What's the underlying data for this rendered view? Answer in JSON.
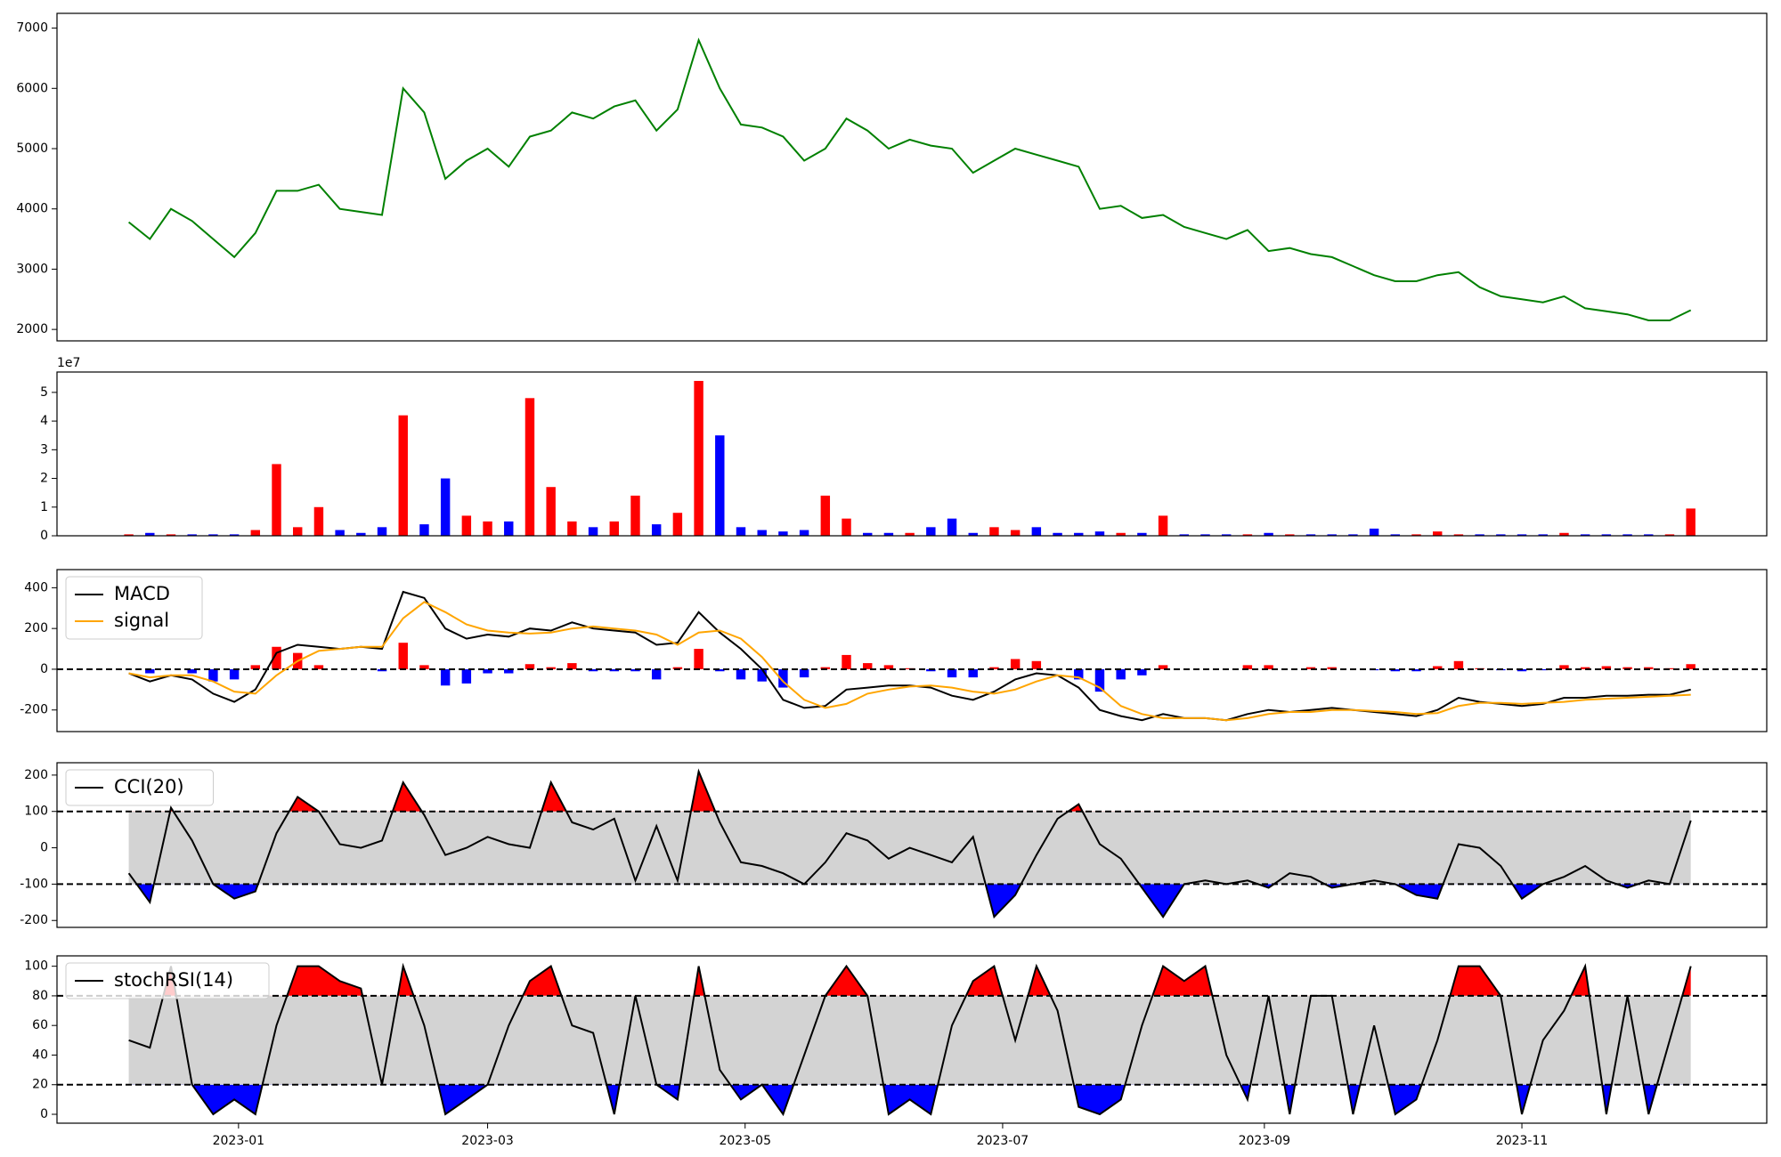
{
  "chart_data": {
    "x": [
      "2022-12-06",
      "2022-12-11",
      "2022-12-16",
      "2022-12-21",
      "2022-12-26",
      "2022-12-31",
      "2023-01-05",
      "2023-01-10",
      "2023-01-15",
      "2023-01-20",
      "2023-01-25",
      "2023-01-30",
      "2023-02-04",
      "2023-02-09",
      "2023-02-14",
      "2023-02-19",
      "2023-02-24",
      "2023-03-01",
      "2023-03-06",
      "2023-03-11",
      "2023-03-16",
      "2023-03-21",
      "2023-03-26",
      "2023-03-31",
      "2023-04-05",
      "2023-04-10",
      "2023-04-15",
      "2023-04-20",
      "2023-04-25",
      "2023-04-30",
      "2023-05-05",
      "2023-05-10",
      "2023-05-15",
      "2023-05-20",
      "2023-05-25",
      "2023-05-30",
      "2023-06-04",
      "2023-06-09",
      "2023-06-14",
      "2023-06-19",
      "2023-06-24",
      "2023-06-29",
      "2023-07-04",
      "2023-07-09",
      "2023-07-14",
      "2023-07-19",
      "2023-07-24",
      "2023-07-29",
      "2023-08-03",
      "2023-08-08",
      "2023-08-13",
      "2023-08-18",
      "2023-08-23",
      "2023-08-28",
      "2023-09-02",
      "2023-09-07",
      "2023-09-12",
      "2023-09-17",
      "2023-09-22",
      "2023-09-27",
      "2023-10-02",
      "2023-10-07",
      "2023-10-12",
      "2023-10-17",
      "2023-10-22",
      "2023-10-27",
      "2023-11-01",
      "2023-11-06",
      "2023-11-11",
      "2023-11-16",
      "2023-11-21",
      "2023-11-26",
      "2023-12-01",
      "2023-12-06",
      "2023-12-11"
    ],
    "xlim": [
      "2022-11-19",
      "2023-12-29"
    ],
    "xticks": [
      {
        "value": "2023-01-01",
        "label": "2023-01"
      },
      {
        "value": "2023-03-01",
        "label": "2023-03"
      },
      {
        "value": "2023-05-01",
        "label": "2023-05"
      },
      {
        "value": "2023-07-01",
        "label": "2023-07"
      },
      {
        "value": "2023-09-01",
        "label": "2023-09"
      },
      {
        "value": "2023-11-01",
        "label": "2023-11"
      }
    ],
    "panels": [
      {
        "type": "line",
        "color": "green",
        "ylim": [
          1810,
          7245
        ],
        "yticks": [
          2000,
          3000,
          4000,
          5000,
          6000,
          7000
        ],
        "values": [
          3780,
          3500,
          4000,
          3800,
          3500,
          3200,
          3600,
          4300,
          4300,
          4400,
          4000,
          3950,
          3900,
          6000,
          5600,
          4500,
          4800,
          5000,
          4700,
          5200,
          5300,
          5600,
          5500,
          5700,
          5800,
          5300,
          5650,
          6800,
          6000,
          5400,
          5350,
          5200,
          4800,
          5000,
          5500,
          5300,
          5000,
          5150,
          5050,
          5000,
          4600,
          4800,
          5000,
          4900,
          4800,
          4700,
          4000,
          4050,
          3850,
          3900,
          3700,
          3600,
          3500,
          3650,
          3300,
          3350,
          3250,
          3200,
          3050,
          2900,
          2800,
          2800,
          2900,
          2950,
          2700,
          2550,
          2500,
          2450,
          2550,
          2350,
          2300,
          2250,
          2150,
          2150,
          2320
        ]
      },
      {
        "type": "bar",
        "offset_label": "1e7",
        "up_color": "red",
        "down_color": "blue",
        "ylim": [
          0,
          5.71
        ],
        "yticks": [
          0,
          1,
          2,
          3,
          4,
          5
        ],
        "values": [
          0.05,
          0.1,
          0.05,
          0.05,
          0.05,
          0.05,
          0.2,
          2.5,
          0.3,
          1.0,
          0.2,
          0.1,
          0.3,
          4.2,
          0.4,
          2.0,
          0.7,
          0.5,
          0.5,
          4.8,
          1.7,
          0.5,
          0.3,
          0.5,
          1.4,
          0.4,
          0.8,
          5.4,
          3.5,
          0.3,
          0.2,
          0.15,
          0.2,
          1.4,
          0.6,
          0.1,
          0.1,
          0.1,
          0.3,
          0.6,
          0.1,
          0.3,
          0.2,
          0.3,
          0.1,
          0.1,
          0.15,
          0.1,
          0.1,
          0.7,
          0.05,
          0.05,
          0.05,
          0.05,
          0.1,
          0.05,
          0.05,
          0.05,
          0.05,
          0.25,
          0.05,
          0.05,
          0.15,
          0.05,
          0.05,
          0.05,
          0.05,
          0.05,
          0.1,
          0.05,
          0.05,
          0.05,
          0.05,
          0.05,
          0.95
        ]
      },
      {
        "type": "macd",
        "ylim": [
          -306,
          489
        ],
        "yticks": [
          -200,
          0,
          200,
          400
        ],
        "zero_line": 0,
        "up_color": "red",
        "down_color": "blue",
        "series": [
          {
            "name": "MACD",
            "color": "black",
            "values": [
              -20,
              -60,
              -30,
              -50,
              -120,
              -160,
              -100,
              80,
              120,
              110,
              100,
              110,
              100,
              380,
              350,
              200,
              150,
              170,
              160,
              200,
              190,
              230,
              200,
              190,
              180,
              120,
              130,
              280,
              180,
              100,
              0,
              -150,
              -190,
              -180,
              -100,
              -90,
              -80,
              -80,
              -90,
              -130,
              -150,
              -110,
              -50,
              -20,
              -30,
              -90,
              -200,
              -230,
              -250,
              -220,
              -240,
              -240,
              -250,
              -220,
              -200,
              -210,
              -200,
              -190,
              -200,
              -210,
              -220,
              -230,
              -200,
              -140,
              -160,
              -170,
              -180,
              -170,
              -140,
              -140,
              -130,
              -130,
              -125,
              -125,
              -100
            ]
          },
          {
            "name": "signal",
            "color": "orange",
            "values": [
              -20,
              -40,
              -30,
              -30,
              -60,
              -110,
              -120,
              -30,
              40,
              90,
              100,
              110,
              110,
              250,
              330,
              280,
              220,
              190,
              180,
              175,
              180,
              200,
              210,
              200,
              190,
              170,
              120,
              180,
              190,
              150,
              60,
              -60,
              -150,
              -190,
              -170,
              -120,
              -100,
              -85,
              -80,
              -90,
              -110,
              -120,
              -100,
              -60,
              -30,
              -40,
              -90,
              -180,
              -220,
              -240,
              -240,
              -240,
              -250,
              -240,
              -220,
              -210,
              -210,
              -200,
              -200,
              -205,
              -210,
              -220,
              -215,
              -180,
              -165,
              -165,
              -170,
              -165,
              -160,
              -150,
              -145,
              -140,
              -135,
              -130,
              -125
            ]
          }
        ],
        "histogram": [
          0,
          -20,
          0,
          -20,
          -60,
          -50,
          20,
          110,
          80,
          20,
          0,
          0,
          -10,
          130,
          20,
          -80,
          -70,
          -20,
          -20,
          25,
          10,
          30,
          -10,
          -10,
          -10,
          -50,
          10,
          100,
          -10,
          -50,
          -60,
          -90,
          -40,
          10,
          70,
          30,
          20,
          5,
          -10,
          -40,
          -40,
          10,
          50,
          40,
          0,
          -50,
          -110,
          -50,
          -30,
          20,
          0,
          0,
          0,
          20,
          20,
          0,
          10,
          10,
          0,
          -5,
          -10,
          -10,
          15,
          40,
          5,
          -5,
          -10,
          -5,
          20,
          10,
          15,
          10,
          10,
          5,
          25
        ]
      },
      {
        "type": "oscillator",
        "name": "CCI(20)",
        "color": "black",
        "upper": 100,
        "lower": -100,
        "upper_color": "red",
        "lower_color": "blue",
        "band_color": "lightgray",
        "ylim": [
          -219,
          234
        ],
        "yticks": [
          -200,
          -100,
          0,
          100,
          200
        ],
        "values": [
          -70,
          -150,
          110,
          20,
          -100,
          -140,
          -120,
          40,
          140,
          100,
          10,
          0,
          20,
          180,
          90,
          -20,
          0,
          30,
          10,
          0,
          180,
          70,
          50,
          80,
          -90,
          60,
          -90,
          210,
          70,
          -40,
          -50,
          -70,
          -100,
          -40,
          40,
          20,
          -30,
          0,
          -20,
          -40,
          30,
          -190,
          -130,
          -20,
          80,
          120,
          10,
          -30,
          -110,
          -190,
          -100,
          -90,
          -100,
          -90,
          -110,
          -70,
          -80,
          -110,
          -100,
          -90,
          -100,
          -130,
          -140,
          10,
          0,
          -50,
          -140,
          -100,
          -80,
          -50,
          -90,
          -110,
          -90,
          -100,
          75
        ]
      },
      {
        "type": "oscillator",
        "name": "stochRSI(14)",
        "color": "black",
        "upper": 80,
        "lower": 20,
        "upper_color": "red",
        "lower_color": "blue",
        "band_color": "lightgray",
        "ylim": [
          -6,
          107
        ],
        "yticks": [
          0,
          20,
          40,
          60,
          80,
          100
        ],
        "values": [
          50,
          45,
          100,
          20,
          0,
          10,
          0,
          60,
          100,
          100,
          90,
          85,
          20,
          100,
          60,
          0,
          10,
          20,
          60,
          90,
          100,
          60,
          55,
          0,
          80,
          20,
          10,
          100,
          30,
          10,
          20,
          0,
          40,
          80,
          100,
          80,
          0,
          10,
          0,
          60,
          90,
          100,
          50,
          100,
          70,
          5,
          0,
          10,
          60,
          100,
          90,
          100,
          40,
          10,
          80,
          0,
          80,
          80,
          0,
          60,
          0,
          10,
          50,
          100,
          100,
          80,
          0,
          50,
          70,
          100,
          0,
          80,
          0,
          50,
          100
        ]
      }
    ]
  }
}
